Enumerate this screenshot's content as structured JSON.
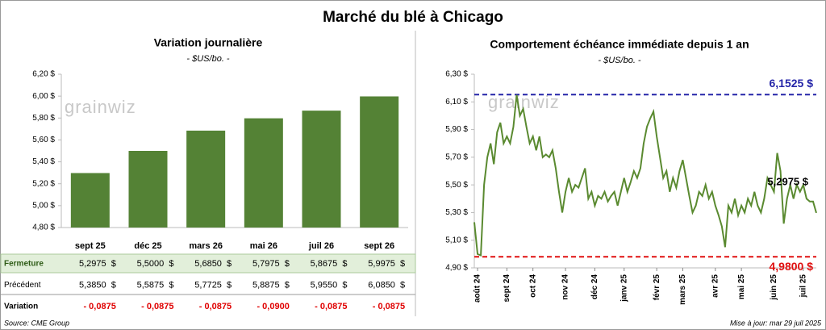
{
  "title": "Marché du blé à Chicago",
  "chart_data": [
    {
      "type": "bar",
      "title": "Variation journalière",
      "subtitle": "- $US/bo. -",
      "watermark": "grainwiz",
      "categories": [
        "sept 25",
        "déc 25",
        "mars 26",
        "mai 26",
        "juil 26",
        "sept 26"
      ],
      "values": [
        5.2975,
        5.5,
        5.685,
        5.7975,
        5.8675,
        5.9975
      ],
      "color": "#548235",
      "ylim": [
        4.8,
        6.2
      ],
      "yticks": [
        {
          "value": 4.8,
          "label": "4,80 $"
        },
        {
          "value": 5.0,
          "label": "5,00 $"
        },
        {
          "value": 5.2,
          "label": "5,20 $"
        },
        {
          "value": 5.4,
          "label": "5,40 $"
        },
        {
          "value": 5.6,
          "label": "5,60 $"
        },
        {
          "value": 5.8,
          "label": "5,80 $"
        },
        {
          "value": 6.0,
          "label": "6,00 $"
        },
        {
          "value": 6.2,
          "label": "6,20 $"
        }
      ]
    },
    {
      "type": "line",
      "title": "Comportement échéance immédiate depuis 1 an",
      "subtitle": "- $US/bo. -",
      "watermark": "grainwiz",
      "color": "#5a8a30",
      "values": [
        5.23,
        5.0,
        4.99,
        5.5,
        5.7,
        5.8,
        5.65,
        5.88,
        5.95,
        5.8,
        5.85,
        5.8,
        5.92,
        6.15,
        6.0,
        6.05,
        5.92,
        5.8,
        5.85,
        5.75,
        5.85,
        5.7,
        5.72,
        5.7,
        5.75,
        5.62,
        5.45,
        5.3,
        5.45,
        5.55,
        5.45,
        5.5,
        5.48,
        5.55,
        5.62,
        5.4,
        5.45,
        5.35,
        5.42,
        5.4,
        5.45,
        5.38,
        5.42,
        5.45,
        5.35,
        5.45,
        5.55,
        5.45,
        5.52,
        5.6,
        5.55,
        5.62,
        5.8,
        5.92,
        5.98,
        6.03,
        5.85,
        5.7,
        5.55,
        5.6,
        5.45,
        5.55,
        5.48,
        5.6,
        5.68,
        5.55,
        5.42,
        5.3,
        5.35,
        5.45,
        5.42,
        5.5,
        5.4,
        5.45,
        5.35,
        5.28,
        5.2,
        5.05,
        5.35,
        5.3,
        5.4,
        5.28,
        5.35,
        5.3,
        5.4,
        5.35,
        5.45,
        5.35,
        5.3,
        5.4,
        5.55,
        5.5,
        5.45,
        5.73,
        5.6,
        5.22,
        5.4,
        5.5,
        5.4,
        5.5,
        5.45,
        5.5,
        5.4,
        5.38,
        5.38,
        5.2975
      ],
      "xlim": [
        0,
        105
      ],
      "xticks": [
        {
          "value": 1,
          "label": "août 24"
        },
        {
          "value": 10,
          "label": "sept 24"
        },
        {
          "value": 18,
          "label": "oct 24"
        },
        {
          "value": 28,
          "label": "nov 24"
        },
        {
          "value": 37,
          "label": "déc 24"
        },
        {
          "value": 46,
          "label": "janv 25"
        },
        {
          "value": 56,
          "label": "févr 25"
        },
        {
          "value": 64,
          "label": "mars 25"
        },
        {
          "value": 74,
          "label": "avr 25"
        },
        {
          "value": 82,
          "label": "mai 25"
        },
        {
          "value": 92,
          "label": "juin 25"
        },
        {
          "value": 101,
          "label": "juil 25"
        }
      ],
      "ylim": [
        4.9,
        6.3
      ],
      "yticks": [
        {
          "value": 4.9,
          "label": "4,90 $"
        },
        {
          "value": 5.1,
          "label": "5,10 $"
        },
        {
          "value": 5.3,
          "label": "5,30 $"
        },
        {
          "value": 5.5,
          "label": "5,50 $"
        },
        {
          "value": 5.7,
          "label": "5,70 $"
        },
        {
          "value": 5.9,
          "label": "5,90 $"
        },
        {
          "value": 6.1,
          "label": "6,10 $"
        },
        {
          "value": 6.3,
          "label": "6,30 $"
        }
      ],
      "ref_lines": [
        {
          "value": 6.1525,
          "label": "6,1525 $",
          "color": "#2424a8"
        },
        {
          "value": 4.98,
          "label": "4,9800 $",
          "color": "#e01010"
        }
      ],
      "annotation": "5,2975 $"
    }
  ],
  "table": {
    "rows": [
      {
        "label": "Fermeture",
        "cells": [
          "5,2975  $",
          "5,5000  $",
          "5,6850  $",
          "5,7975  $",
          "5,8675  $",
          "5,9975  $"
        ]
      },
      {
        "label": "Précédent",
        "cells": [
          "5,3850  $",
          "5,5875  $",
          "5,7725  $",
          "5,8875  $",
          "5,9550  $",
          "6,0850  $"
        ]
      },
      {
        "label": "Variation",
        "cells": [
          "- 0,0875",
          "- 0,0875",
          "- 0,0875",
          "- 0,0900",
          "- 0,0875",
          "- 0,0875"
        ]
      }
    ]
  },
  "source": "Source: CME Group",
  "updated": "Mise à jour: mar 29 juil 2025"
}
